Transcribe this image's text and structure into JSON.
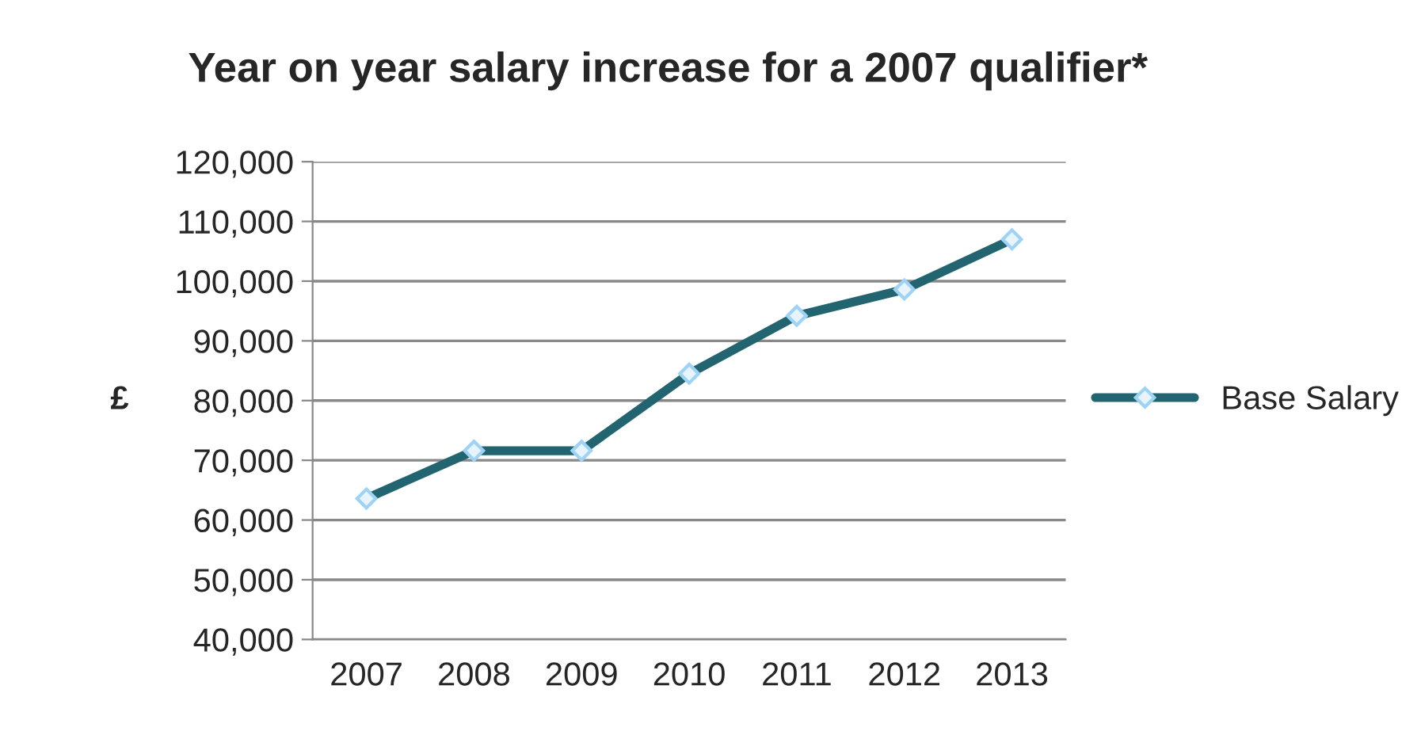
{
  "chart_data": {
    "type": "line",
    "title": "Year on year salary increase for a 2007 qualifier*",
    "ylabel": "£",
    "categories": [
      "2007",
      "2008",
      "2009",
      "2010",
      "2011",
      "2012",
      "2013"
    ],
    "series": [
      {
        "name": "Base Salary",
        "color": "#226470",
        "values": [
          63600,
          71600,
          71600,
          84500,
          94200,
          98600,
          107000
        ]
      }
    ],
    "ylim": [
      40000,
      120000
    ],
    "yticks": [
      {
        "value": 40000,
        "label": "40,000"
      },
      {
        "value": 50000,
        "label": "50,000"
      },
      {
        "value": 60000,
        "label": "60,000"
      },
      {
        "value": 70000,
        "label": "70,000"
      },
      {
        "value": 80000,
        "label": "80,000"
      },
      {
        "value": 90000,
        "label": "90,000"
      },
      {
        "value": 100000,
        "label": "100,000"
      },
      {
        "value": 110000,
        "label": "110,000"
      },
      {
        "value": 120000,
        "label": "120,000"
      }
    ],
    "grid": "y",
    "legend": "right",
    "marker": "diamond",
    "line_style": "solid"
  }
}
